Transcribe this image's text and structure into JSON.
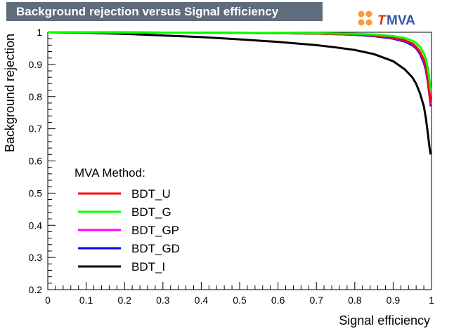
{
  "chart_data": {
    "type": "line",
    "title": "Background rejection versus Signal efficiency",
    "xlabel": "Signal efficiency",
    "ylabel": "Background rejection",
    "xlim": [
      0,
      1
    ],
    "ylim": [
      0.2,
      1
    ],
    "x_ticks": [
      "0",
      "0.1",
      "0.2",
      "0.3",
      "0.4",
      "0.5",
      "0.6",
      "0.7",
      "0.8",
      "0.9",
      "1"
    ],
    "y_ticks": [
      "0.2",
      "0.3",
      "0.4",
      "0.5",
      "0.6",
      "0.7",
      "0.8",
      "0.9",
      "1"
    ],
    "grid": false,
    "legend_title": "MVA Method:",
    "legend_position": "bottom-left",
    "series": [
      {
        "name": "BDT_U",
        "color": "#ff0000",
        "points": [
          [
            0,
            1.0
          ],
          [
            0.3,
            0.999
          ],
          [
            0.5,
            0.998
          ],
          [
            0.7,
            0.996
          ],
          [
            0.8,
            0.993
          ],
          [
            0.85,
            0.99
          ],
          [
            0.9,
            0.983
          ],
          [
            0.93,
            0.975
          ],
          [
            0.95,
            0.965
          ],
          [
            0.96,
            0.955
          ],
          [
            0.97,
            0.94
          ],
          [
            0.98,
            0.915
          ],
          [
            0.985,
            0.895
          ],
          [
            0.99,
            0.86
          ],
          [
            0.995,
            0.81
          ],
          [
            0.998,
            0.78
          ]
        ]
      },
      {
        "name": "BDT_G",
        "color": "#00ff00",
        "points": [
          [
            0,
            1.0
          ],
          [
            0.3,
            0.999
          ],
          [
            0.5,
            0.998
          ],
          [
            0.7,
            0.997
          ],
          [
            0.8,
            0.995
          ],
          [
            0.85,
            0.993
          ],
          [
            0.9,
            0.988
          ],
          [
            0.93,
            0.982
          ],
          [
            0.95,
            0.974
          ],
          [
            0.96,
            0.966
          ],
          [
            0.97,
            0.955
          ],
          [
            0.98,
            0.935
          ],
          [
            0.985,
            0.918
          ],
          [
            0.99,
            0.89
          ],
          [
            0.995,
            0.85
          ],
          [
            0.998,
            0.82
          ]
        ]
      },
      {
        "name": "BDT_GP",
        "color": "#ff00ff",
        "points": [
          [
            0,
            1.0
          ],
          [
            0.3,
            0.999
          ],
          [
            0.5,
            0.998
          ],
          [
            0.7,
            0.996
          ],
          [
            0.8,
            0.993
          ],
          [
            0.85,
            0.99
          ],
          [
            0.9,
            0.982
          ],
          [
            0.93,
            0.974
          ],
          [
            0.95,
            0.964
          ],
          [
            0.96,
            0.954
          ],
          [
            0.97,
            0.938
          ],
          [
            0.98,
            0.912
          ],
          [
            0.985,
            0.892
          ],
          [
            0.99,
            0.855
          ],
          [
            0.995,
            0.805
          ],
          [
            0.998,
            0.775
          ]
        ]
      },
      {
        "name": "BDT_GD",
        "color": "#0000ff",
        "points": [
          [
            0,
            1.0
          ],
          [
            0.3,
            0.999
          ],
          [
            0.5,
            0.998
          ],
          [
            0.7,
            0.996
          ],
          [
            0.8,
            0.992
          ],
          [
            0.85,
            0.988
          ],
          [
            0.9,
            0.98
          ],
          [
            0.93,
            0.971
          ],
          [
            0.95,
            0.96
          ],
          [
            0.96,
            0.95
          ],
          [
            0.97,
            0.933
          ],
          [
            0.98,
            0.905
          ],
          [
            0.985,
            0.885
          ],
          [
            0.99,
            0.848
          ],
          [
            0.995,
            0.8
          ],
          [
            0.998,
            0.77
          ]
        ]
      },
      {
        "name": "BDT_I",
        "color": "#000000",
        "points": [
          [
            0,
            1.0
          ],
          [
            0.1,
            0.998
          ],
          [
            0.2,
            0.995
          ],
          [
            0.3,
            0.99
          ],
          [
            0.4,
            0.985
          ],
          [
            0.5,
            0.978
          ],
          [
            0.6,
            0.97
          ],
          [
            0.7,
            0.96
          ],
          [
            0.75,
            0.953
          ],
          [
            0.8,
            0.945
          ],
          [
            0.85,
            0.932
          ],
          [
            0.9,
            0.91
          ],
          [
            0.93,
            0.885
          ],
          [
            0.95,
            0.86
          ],
          [
            0.96,
            0.84
          ],
          [
            0.97,
            0.81
          ],
          [
            0.98,
            0.77
          ],
          [
            0.985,
            0.735
          ],
          [
            0.99,
            0.69
          ],
          [
            0.995,
            0.64
          ],
          [
            0.998,
            0.62
          ]
        ]
      }
    ]
  },
  "logo": {
    "text": "TMVA",
    "colors": {
      "primary": "#ff6600",
      "secondary": "#3355aa"
    }
  }
}
